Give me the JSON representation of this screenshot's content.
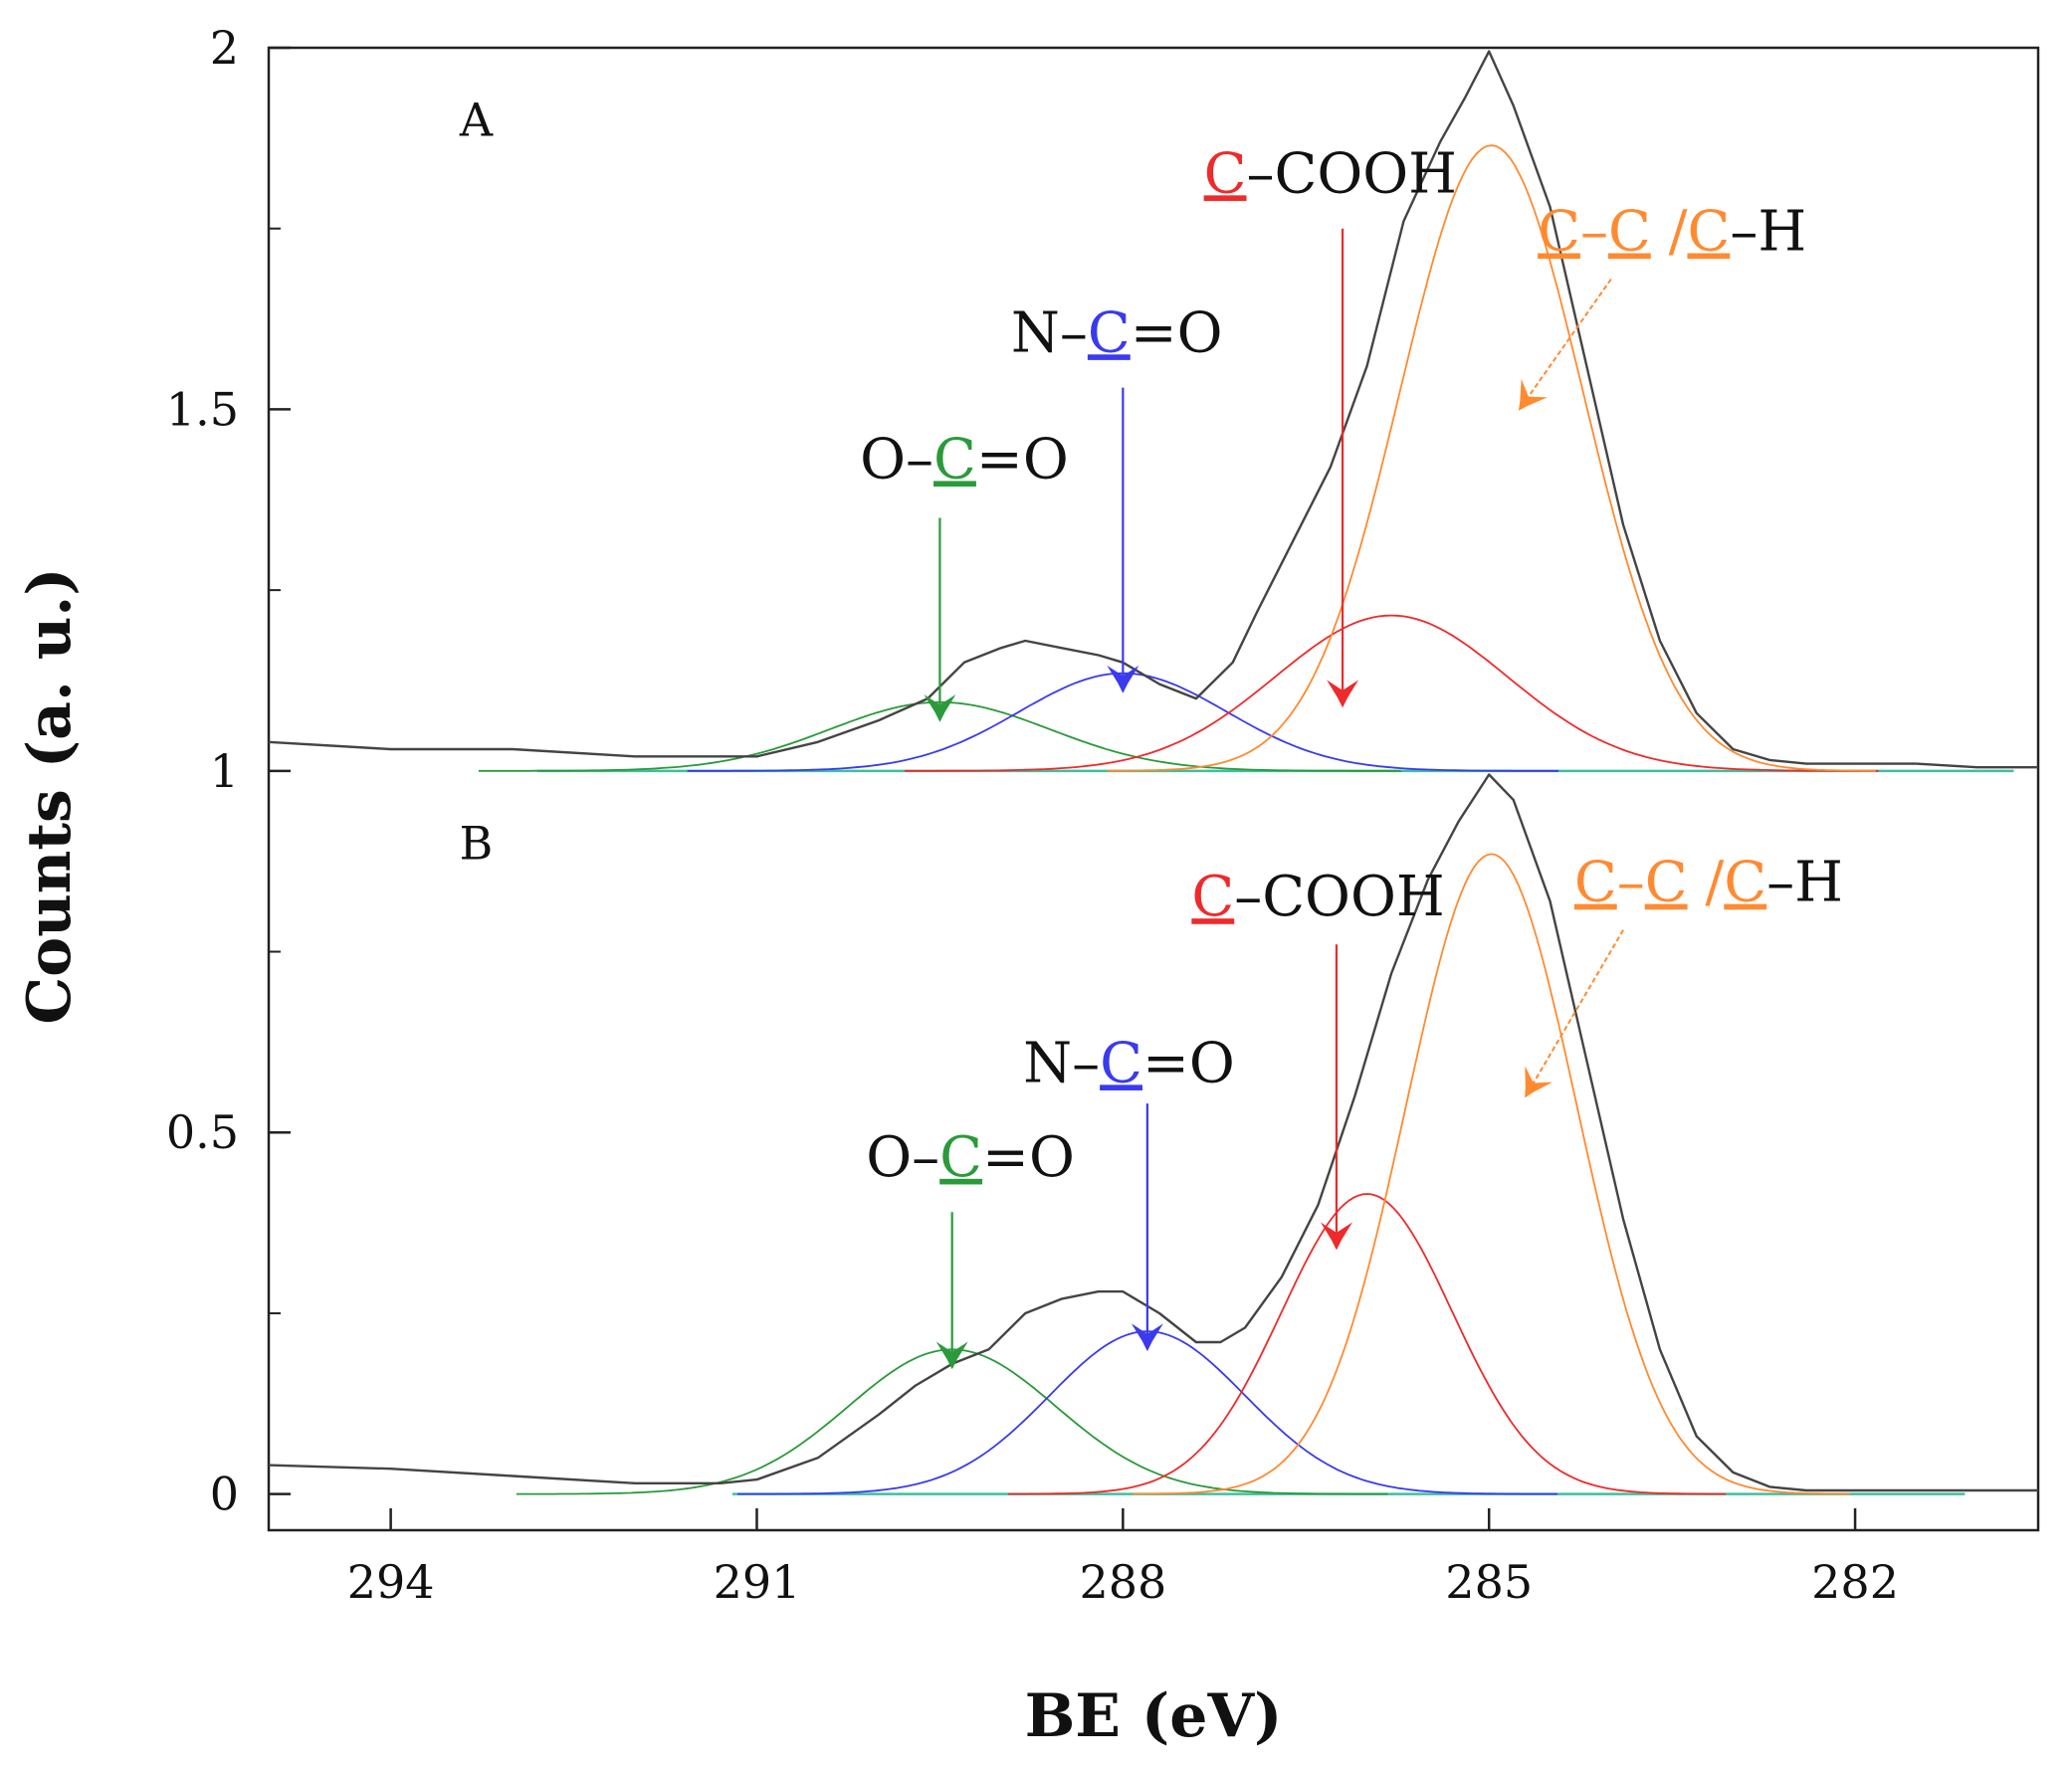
{
  "chart_data": {
    "type": "line",
    "xlabel": "BE (eV)",
    "ylabel": "Counts (a. u.)",
    "xlim": [
      295,
      280.5
    ],
    "x_reversed": true,
    "ylim": [
      -0.05,
      2.0
    ],
    "x_ticks": [
      294,
      291,
      288,
      285,
      282
    ],
    "y_ticks": [
      0,
      0.5,
      1,
      1.5,
      2
    ],
    "grid": false,
    "colors": {
      "envelope": "#444444",
      "ooc": "#2a9a3a",
      "ncc": "#3a3aee",
      "ccooh": "#ee2a2a",
      "cc": "#ff8a30",
      "baseline": "#3fbf9f"
    },
    "panels": [
      {
        "label": "A",
        "baseline": 1.0,
        "peaks": [
          {
            "key": "ooc",
            "center": 289.5,
            "height": 0.095,
            "sigma": 0.9
          },
          {
            "key": "ncc",
            "center": 288.0,
            "height": 0.135,
            "sigma": 0.85
          },
          {
            "key": "ccooh",
            "center": 285.8,
            "height": 0.215,
            "sigma": 0.95
          },
          {
            "key": "cc",
            "center": 284.98,
            "height": 0.865,
            "sigma": 0.75
          }
        ],
        "envelope": {
          "x": [
            295,
            294,
            293,
            292,
            291,
            290.5,
            290,
            289.6,
            289.3,
            289,
            288.8,
            288.5,
            288.2,
            288,
            287.7,
            287.4,
            287.1,
            286.9,
            286.6,
            286.3,
            286,
            285.7,
            285.4,
            285.2,
            285.0,
            284.8,
            284.5,
            284.2,
            283.9,
            283.6,
            283.3,
            283.0,
            282.7,
            282.4,
            282,
            281.5,
            281,
            280.5
          ],
          "y": [
            1.04,
            1.03,
            1.03,
            1.02,
            1.02,
            1.04,
            1.07,
            1.1,
            1.15,
            1.17,
            1.18,
            1.17,
            1.16,
            1.15,
            1.12,
            1.1,
            1.15,
            1.22,
            1.32,
            1.42,
            1.56,
            1.76,
            1.87,
            1.93,
            1.995,
            1.92,
            1.78,
            1.56,
            1.34,
            1.18,
            1.08,
            1.03,
            1.015,
            1.01,
            1.01,
            1.01,
            1.005,
            1.005
          ]
        },
        "annotations": [
          {
            "key": "ooc",
            "parts": [
              {
                "t": "O–",
                "c": "#111"
              },
              {
                "t": "C",
                "c": "#2a9a3a",
                "u": true
              },
              {
                "t": "=O",
                "c": "#111"
              }
            ],
            "text_x": 289.3,
            "text_y": 1.405,
            "arrow_from": [
              289.5,
              1.35
            ],
            "arrow_to": [
              289.5,
              1.07
            ]
          },
          {
            "key": "ncc",
            "parts": [
              {
                "t": "N–",
                "c": "#111"
              },
              {
                "t": "C",
                "c": "#3a3aee",
                "u": true
              },
              {
                "t": "=O",
                "c": "#111"
              }
            ],
            "text_x": 288.05,
            "text_y": 1.58,
            "arrow_from": [
              288.0,
              1.53
            ],
            "arrow_to": [
              288.0,
              1.11
            ]
          },
          {
            "key": "ccooh",
            "parts": [
              {
                "t": "C",
                "c": "#ee2a2a",
                "u": true
              },
              {
                "t": "–COOH",
                "c": "#111"
              }
            ],
            "text_x": 286.3,
            "text_y": 1.8,
            "arrow_from": [
              286.2,
              1.75
            ],
            "arrow_to": [
              286.2,
              1.09
            ]
          },
          {
            "key": "cc",
            "parts": [
              {
                "t": "C",
                "c": "#ff8a30",
                "u": true
              },
              {
                "t": "–",
                "c": "#ff8a30"
              },
              {
                "t": "C",
                "c": "#ff8a30",
                "u": true
              },
              {
                "t": " /",
                "c": "#ff8a30"
              },
              {
                "t": "C",
                "c": "#ff8a30",
                "u": true
              },
              {
                "t": "–H",
                "c": "#111"
              }
            ],
            "text_x": 283.5,
            "text_y": 1.72,
            "arrow_from": [
              284.0,
              1.68
            ],
            "arrow_to": [
              284.75,
              1.5
            ]
          }
        ]
      },
      {
        "label": "B",
        "baseline": 0.0,
        "peaks": [
          {
            "key": "ooc",
            "center": 289.4,
            "height": 0.2,
            "sigma": 0.85
          },
          {
            "key": "ncc",
            "center": 287.8,
            "height": 0.225,
            "sigma": 0.8
          },
          {
            "key": "ccooh",
            "center": 286.0,
            "height": 0.415,
            "sigma": 0.7
          },
          {
            "key": "cc",
            "center": 284.98,
            "height": 0.885,
            "sigma": 0.7
          }
        ],
        "envelope": {
          "x": [
            295,
            294,
            293,
            292,
            291.3,
            291,
            290.5,
            290,
            289.7,
            289.4,
            289.1,
            288.8,
            288.5,
            288.2,
            288,
            287.7,
            287.4,
            287.2,
            287.0,
            286.7,
            286.4,
            286.1,
            285.8,
            285.5,
            285.25,
            285.0,
            284.8,
            284.5,
            284.2,
            283.9,
            283.6,
            283.3,
            283.0,
            282.7,
            282.4,
            282,
            281.5,
            281,
            280.5
          ],
          "y": [
            0.04,
            0.035,
            0.025,
            0.015,
            0.015,
            0.02,
            0.05,
            0.11,
            0.15,
            0.18,
            0.2,
            0.25,
            0.27,
            0.28,
            0.28,
            0.25,
            0.21,
            0.21,
            0.23,
            0.3,
            0.4,
            0.55,
            0.72,
            0.85,
            0.93,
            0.995,
            0.96,
            0.82,
            0.6,
            0.38,
            0.2,
            0.08,
            0.03,
            0.01,
            0.005,
            0.005,
            0.005,
            0.005,
            0.005
          ]
        },
        "annotations": [
          {
            "key": "ooc",
            "parts": [
              {
                "t": "O–",
                "c": "#111"
              },
              {
                "t": "C",
                "c": "#2a9a3a",
                "u": true
              },
              {
                "t": "=O",
                "c": "#111"
              }
            ],
            "text_x": 289.25,
            "text_y": 0.44,
            "arrow_from": [
              289.4,
              0.39
            ],
            "arrow_to": [
              289.4,
              0.175
            ]
          },
          {
            "key": "ncc",
            "parts": [
              {
                "t": "N–",
                "c": "#111"
              },
              {
                "t": "C",
                "c": "#3a3aee",
                "u": true
              },
              {
                "t": "=O",
                "c": "#111"
              }
            ],
            "text_x": 287.95,
            "text_y": 0.57,
            "arrow_from": [
              287.8,
              0.54
            ],
            "arrow_to": [
              287.8,
              0.2
            ]
          },
          {
            "key": "ccooh",
            "parts": [
              {
                "t": "C",
                "c": "#ee2a2a",
                "u": true
              },
              {
                "t": "–COOH",
                "c": "#111"
              }
            ],
            "text_x": 286.4,
            "text_y": 0.8,
            "arrow_from": [
              286.25,
              0.76
            ],
            "arrow_to": [
              286.25,
              0.34
            ]
          },
          {
            "key": "cc",
            "parts": [
              {
                "t": "C",
                "c": "#ff8a30",
                "u": true
              },
              {
                "t": "–",
                "c": "#ff8a30"
              },
              {
                "t": "C",
                "c": "#ff8a30",
                "u": true
              },
              {
                "t": " /",
                "c": "#ff8a30"
              },
              {
                "t": "C",
                "c": "#ff8a30",
                "u": true
              },
              {
                "t": "–H",
                "c": "#111"
              }
            ],
            "text_x": 283.2,
            "text_y": 0.82,
            "arrow_from": [
              283.9,
              0.78
            ],
            "arrow_to": [
              284.7,
              0.55
            ]
          }
        ]
      }
    ]
  }
}
